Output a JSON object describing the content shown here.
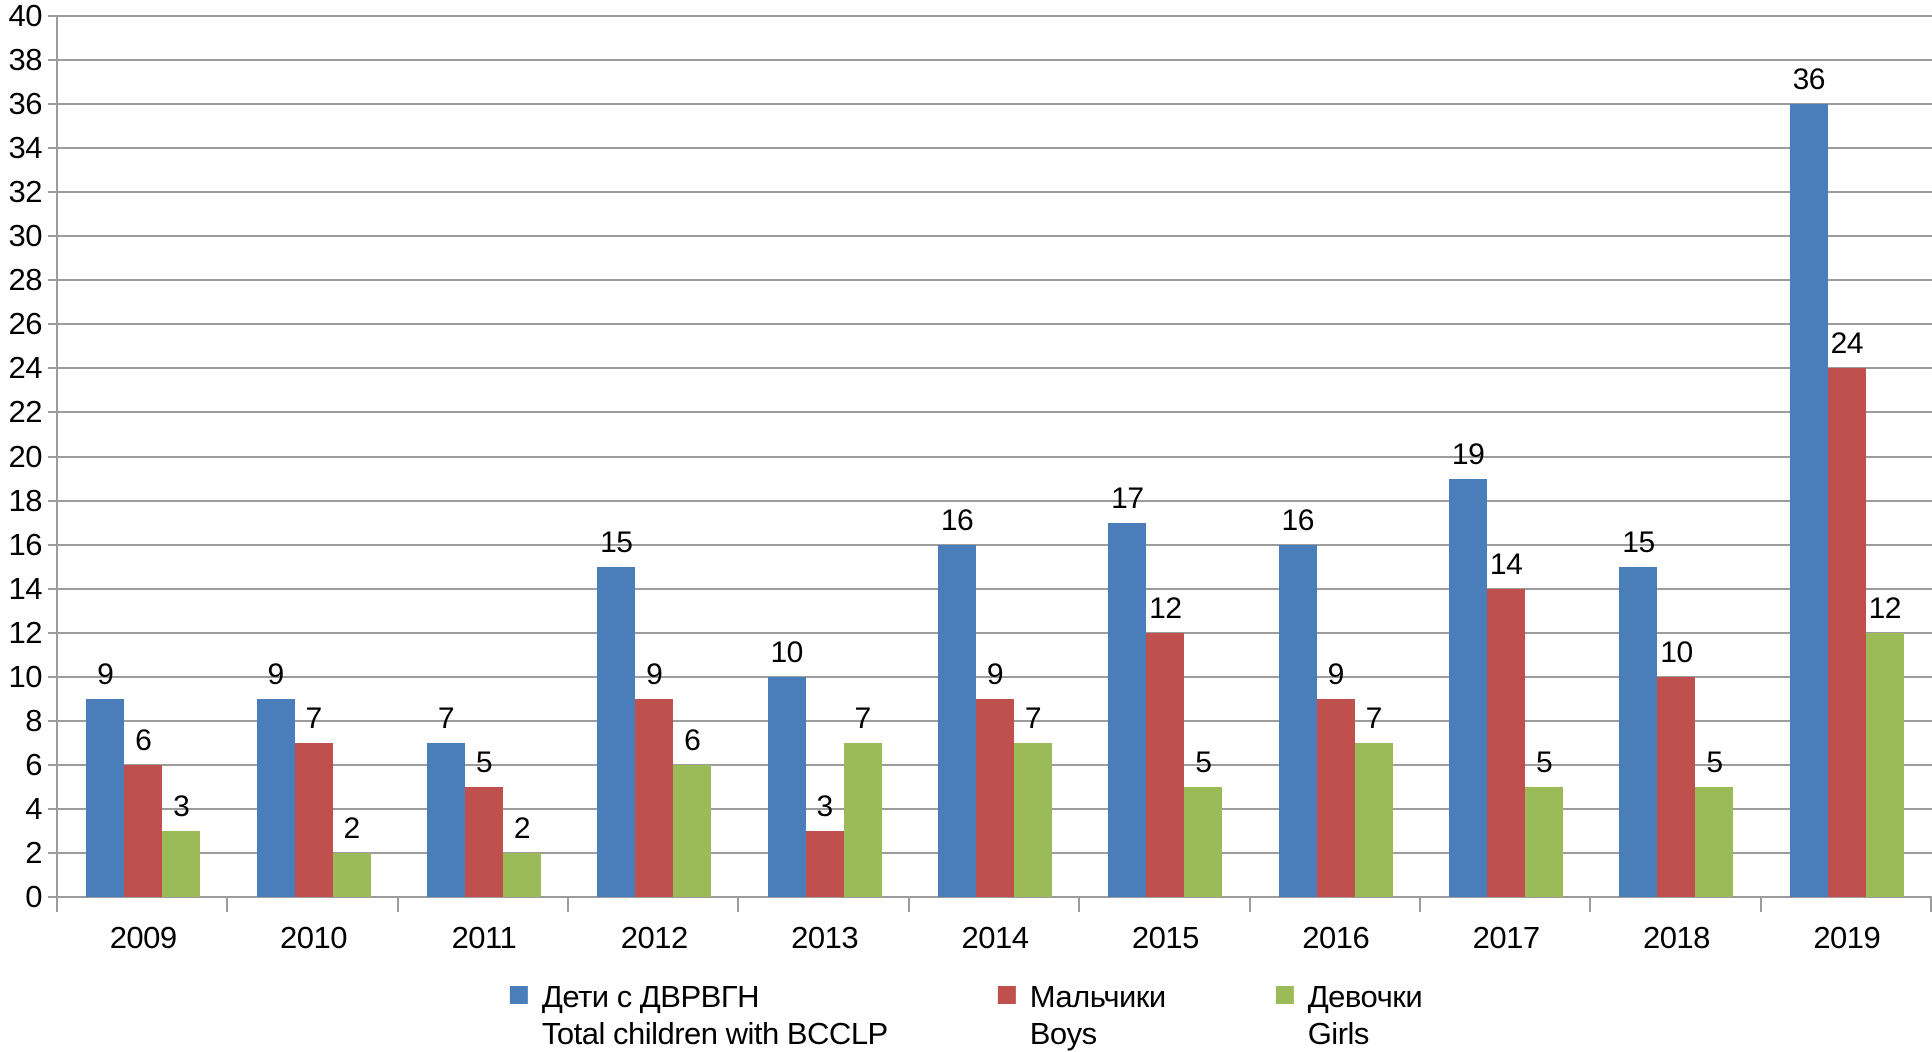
{
  "chart_data": {
    "type": "bar",
    "title": "",
    "xlabel": "",
    "ylabel": "",
    "categories": [
      "2009",
      "2010",
      "2011",
      "2012",
      "2013",
      "2014",
      "2015",
      "2016",
      "2017",
      "2018",
      "2019"
    ],
    "series": [
      {
        "name_ru": "Дети с ДВРВГН",
        "name_en": "Total children with BCCLP",
        "color": "#4A7EBB",
        "values": [
          9,
          9,
          7,
          15,
          10,
          16,
          17,
          16,
          19,
          15,
          36
        ]
      },
      {
        "name_ru": "Мальчики",
        "name_en": "Boys",
        "color": "#C0504D",
        "values": [
          6,
          7,
          5,
          9,
          3,
          9,
          12,
          9,
          14,
          10,
          24
        ]
      },
      {
        "name_ru": "Девочки",
        "name_en": "Girls",
        "color": "#9BBB59",
        "values": [
          3,
          2,
          2,
          6,
          7,
          7,
          5,
          7,
          5,
          5,
          12
        ]
      }
    ],
    "ylim": [
      0,
      40
    ],
    "ytick_step": 2,
    "grid": "horizontal",
    "data_labels": true,
    "legend_position": "bottom"
  },
  "colors": {
    "background": "#FFFFFF",
    "gridline": "#9C9C9C",
    "axis": "#9C9C9C",
    "text": "#000000"
  }
}
